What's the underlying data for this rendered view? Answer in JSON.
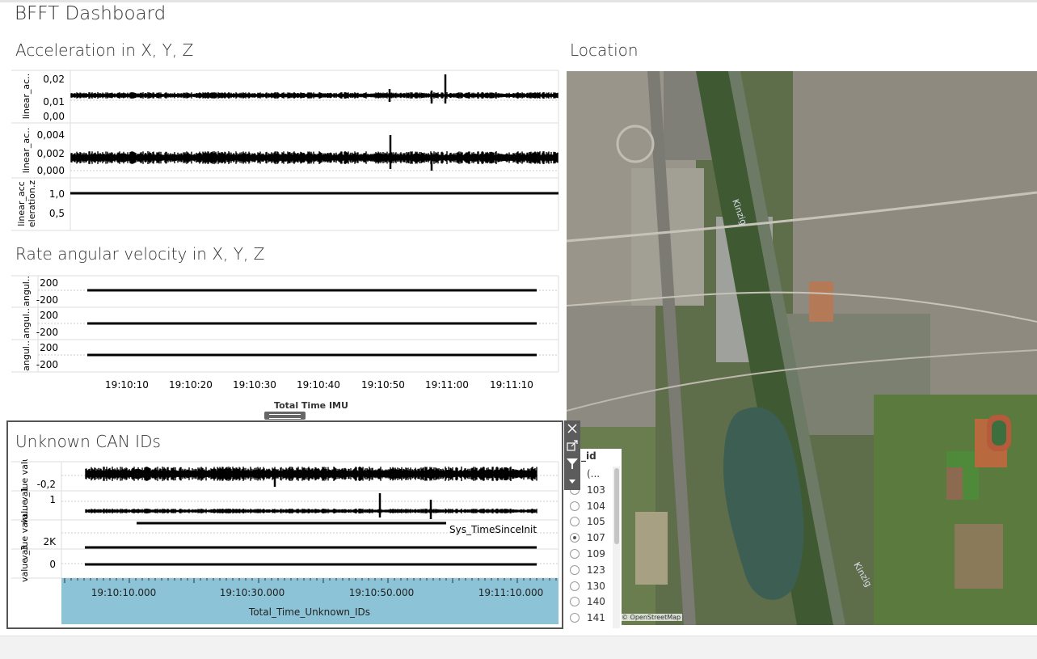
{
  "dashboard": {
    "title": "BFFT Dashboard"
  },
  "accel": {
    "title": "Acceleration in X, Y, Z",
    "panes": [
      {
        "axis_label": "linear_ac..",
        "ticks": [
          "0,02",
          "0,01",
          "0,00"
        ]
      },
      {
        "axis_label": "linear_ac..",
        "ticks": [
          "0,004",
          "0,002",
          "0,000"
        ]
      },
      {
        "axis_label": "linear_acc\neleration.z",
        "ticks": [
          "1,0",
          "0,5"
        ]
      }
    ]
  },
  "angular": {
    "title": "Rate angular velocity in X, Y, Z",
    "panes": [
      {
        "axis_label": "angul..",
        "ticks": [
          "200",
          "-200"
        ]
      },
      {
        "axis_label": "angul..",
        "ticks": [
          "200",
          "-200"
        ]
      },
      {
        "axis_label": "angul..",
        "ticks": [
          "200",
          "-200"
        ]
      }
    ],
    "x_ticks": [
      "19:10:10",
      "19:10:20",
      "19:10:30",
      "19:10:40",
      "19:10:50",
      "19:11:00",
      "19:11:10"
    ],
    "x_title": "Total Time IMU"
  },
  "can": {
    "title": "Unknown CAN IDs",
    "panes": [
      {
        "axis_label": "value valu..",
        "ticks": [
          "-0,2"
        ]
      },
      {
        "axis_label": "value _1",
        "ticks": [
          "1"
        ]
      },
      {
        "axis_label": "value valu..",
        "ticks": [
          "2K"
        ],
        "mark_label": "Sys_TimeSinceInit"
      },
      {
        "axis_label": "value _3",
        "ticks": [
          "0"
        ]
      }
    ],
    "x_ticks": [
      "19:10:10.000",
      "19:10:30.000",
      "19:10:50.000",
      "19:11:10.000"
    ],
    "x_title": "Total_Time_Unknown_IDs"
  },
  "location": {
    "title": "Location",
    "credit": "© OpenStreetMap",
    "river_label": "Kinzig"
  },
  "legend": {
    "title": "_id",
    "items": [
      {
        "label": "(...",
        "selected": false
      },
      {
        "label": "103",
        "selected": false
      },
      {
        "label": "104",
        "selected": false
      },
      {
        "label": "105",
        "selected": false
      },
      {
        "label": "107",
        "selected": true
      },
      {
        "label": "109",
        "selected": false
      },
      {
        "label": "123",
        "selected": false
      },
      {
        "label": "130",
        "selected": false
      },
      {
        "label": "140",
        "selected": false
      },
      {
        "label": "141",
        "selected": false
      }
    ]
  },
  "toolbar": {
    "icons": [
      "close-icon",
      "popout-icon",
      "filter-icon",
      "more-icon"
    ]
  },
  "colors": {
    "line": "#000000",
    "axis_band": "#8cc3d6",
    "frame": "#555555",
    "toolbar": "#5c5c5c"
  }
}
